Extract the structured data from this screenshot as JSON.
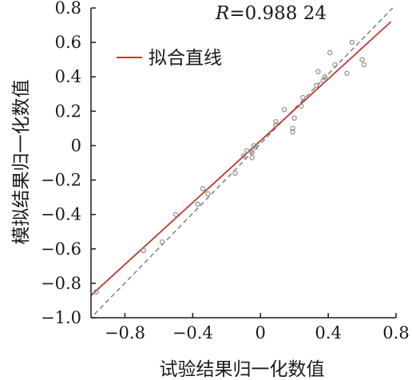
{
  "chart_data": {
    "type": "scatter",
    "annotation": {
      "symbol": "R",
      "value": "=0.988 24"
    },
    "xlabel": "试验结果归一化数值",
    "ylabel": "模拟结果归一化数值",
    "xlim": [
      -1.0,
      0.8
    ],
    "ylim": [
      -1.0,
      0.8
    ],
    "x_ticks": [
      {
        "value": -0.8,
        "label": "−0.8"
      },
      {
        "value": -0.4,
        "label": "−0.4"
      },
      {
        "value": 0,
        "label": "0"
      },
      {
        "value": 0.4,
        "label": "0.4"
      },
      {
        "value": 0.8,
        "label": "0.8"
      }
    ],
    "y_ticks": [
      {
        "value": 0.8,
        "label": "0.8"
      },
      {
        "value": 0.6,
        "label": "0.6"
      },
      {
        "value": 0.4,
        "label": "0.4"
      },
      {
        "value": 0.2,
        "label": "0.2"
      },
      {
        "value": 0,
        "label": "0"
      },
      {
        "value": -0.2,
        "label": "−0.2"
      },
      {
        "value": -0.4,
        "label": "−0.4"
      },
      {
        "value": -0.6,
        "label": "−0.6"
      },
      {
        "value": -0.8,
        "label": "−0.8"
      },
      {
        "value": -1.0,
        "label": "−1.0"
      }
    ],
    "legend": {
      "position": "top-left",
      "entries": [
        {
          "label": "拟合直线",
          "color": "#c0392b"
        }
      ]
    },
    "fit_line": {
      "x": [
        -1.0,
        0.77
      ],
      "y": [
        -0.87,
        0.72
      ],
      "color": "#c0392b"
    },
    "reference_line": {
      "x": [
        -0.98,
        0.78
      ],
      "y": [
        -0.98,
        0.8
      ],
      "color": "#808080",
      "style": "dashed"
    },
    "points": [
      {
        "x": -0.97,
        "y": -0.85
      },
      {
        "x": -0.69,
        "y": -0.61
      },
      {
        "x": -0.58,
        "y": -0.56
      },
      {
        "x": -0.5,
        "y": -0.4
      },
      {
        "x": -0.37,
        "y": -0.34
      },
      {
        "x": -0.34,
        "y": -0.25
      },
      {
        "x": -0.31,
        "y": -0.28
      },
      {
        "x": -0.15,
        "y": -0.16
      },
      {
        "x": -0.1,
        "y": -0.06
      },
      {
        "x": -0.08,
        "y": -0.03
      },
      {
        "x": -0.05,
        "y": -0.04
      },
      {
        "x": -0.05,
        "y": -0.07
      },
      {
        "x": -0.04,
        "y": 0.0
      },
      {
        "x": -0.03,
        "y": -0.01
      },
      {
        "x": 0.09,
        "y": 0.14
      },
      {
        "x": 0.09,
        "y": 0.12
      },
      {
        "x": 0.14,
        "y": 0.21
      },
      {
        "x": 0.19,
        "y": 0.1
      },
      {
        "x": 0.19,
        "y": 0.08
      },
      {
        "x": 0.2,
        "y": 0.16
      },
      {
        "x": 0.24,
        "y": 0.23
      },
      {
        "x": 0.25,
        "y": 0.28
      },
      {
        "x": 0.33,
        "y": 0.35
      },
      {
        "x": 0.34,
        "y": 0.43
      },
      {
        "x": 0.37,
        "y": 0.38
      },
      {
        "x": 0.38,
        "y": 0.4
      },
      {
        "x": 0.41,
        "y": 0.54
      },
      {
        "x": 0.44,
        "y": 0.47
      },
      {
        "x": 0.51,
        "y": 0.42
      },
      {
        "x": 0.54,
        "y": 0.6
      },
      {
        "x": 0.6,
        "y": 0.5
      },
      {
        "x": 0.61,
        "y": 0.47
      }
    ],
    "colors": {
      "points": "#8a8a8a",
      "axes": "#1a1a1a"
    }
  }
}
